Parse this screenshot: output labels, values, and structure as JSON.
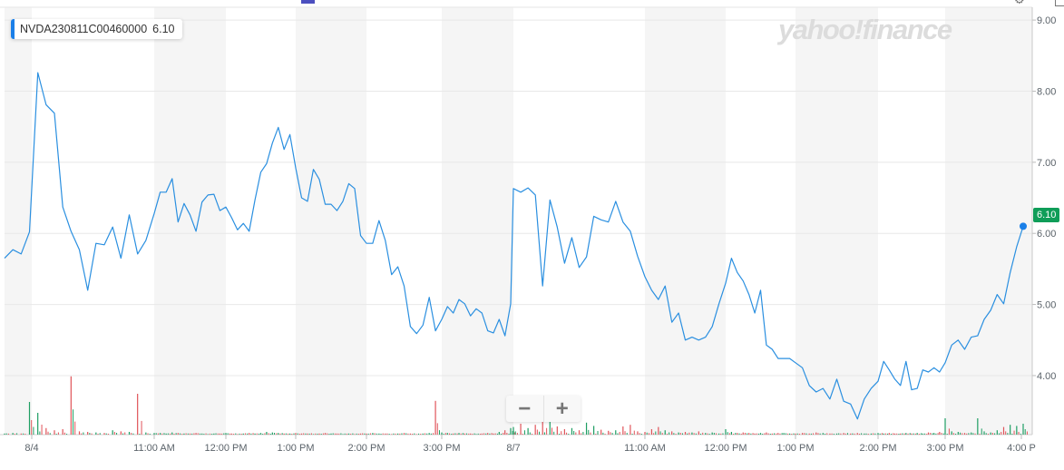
{
  "legend": {
    "symbol": "NVDA230811C00460000",
    "value": "6.10"
  },
  "watermark": "yahoo!finance",
  "zoom_controls": {
    "minus": "−",
    "plus": "+"
  },
  "icons": {
    "settings": "gear-icon",
    "fullscreen": "square-icon"
  },
  "colors": {
    "line": "#2a8fe0",
    "up_volume": "#1e9e63",
    "down_volume": "#e0545a",
    "last_price_tag": "#0f9d58",
    "band": "#f5f5f5"
  },
  "chart_data": {
    "type": "line",
    "title": "",
    "xlabel": "",
    "ylabel": "",
    "ylim": [
      3.17,
      9.18
    ],
    "grid": true,
    "y_ticks": [
      "9.00",
      "8.00",
      "7.00",
      "6.00",
      "5.00",
      "4.00"
    ],
    "x_ticks": [
      "8/4",
      "11:00 AM",
      "12:00 PM",
      "1:00 PM",
      "2:00 PM",
      "3:00 PM",
      "8/7",
      "11:00 AM",
      "12:00 PM",
      "1:00 PM",
      "2:00 PM",
      "3:00 PM",
      "4:00 P"
    ],
    "last_price": "6.10",
    "series": [
      {
        "day": "8/4",
        "start": "09:30",
        "interval_min": 5,
        "prices": [
          5.65,
          5.77,
          5.71,
          6.02,
          8.26,
          7.81,
          7.69,
          6.37,
          6.03,
          5.77,
          5.2,
          5.86,
          5.84,
          6.09,
          5.65,
          6.26,
          5.71,
          5.9,
          6.28,
          6.58,
          6.58,
          6.77,
          6.16,
          6.42,
          6.26,
          6.03,
          6.44,
          6.54,
          6.55,
          6.32,
          6.37,
          6.22,
          6.05,
          6.14,
          6.03,
          6.47,
          6.86,
          6.98,
          7.27,
          7.49,
          7.18,
          7.39,
          6.92,
          6.5,
          6.45,
          6.9,
          6.76,
          6.41,
          6.41,
          6.32,
          6.45,
          6.7,
          6.63,
          5.97,
          5.86,
          5.86,
          6.18,
          5.9,
          5.42,
          5.53,
          5.26,
          4.69,
          4.59,
          4.71,
          5.1,
          4.63,
          4.79,
          4.97,
          4.88,
          5.07,
          5.01,
          4.84,
          4.94,
          4.88,
          4.63,
          4.6,
          4.79,
          4.56,
          5.01
        ],
        "volume": [
          2,
          3,
          2,
          60,
          40,
          12,
          8,
          10,
          107,
          6,
          5,
          4,
          3,
          8,
          6,
          5,
          75,
          4,
          3,
          3,
          2,
          4,
          3,
          2,
          2,
          3,
          2,
          1,
          2,
          2,
          3,
          2,
          1,
          2,
          3,
          2,
          3,
          5,
          4,
          3,
          2,
          2,
          3,
          2,
          2,
          1,
          2,
          3,
          2,
          2,
          1,
          2,
          1,
          2,
          2,
          3,
          2,
          2,
          1,
          2,
          3,
          2,
          1,
          2,
          3,
          62,
          4,
          3,
          2,
          3,
          2,
          2,
          1,
          2,
          3,
          2,
          5,
          8,
          12
        ]
      },
      {
        "day": "8/7",
        "start": "09:30",
        "interval_min": 5,
        "prices": [
          6.63,
          6.58,
          6.64,
          6.54,
          5.26,
          6.47,
          6.09,
          5.58,
          5.94,
          5.52,
          5.67,
          6.24,
          6.19,
          6.16,
          6.45,
          6.16,
          6.03,
          5.68,
          5.39,
          5.2,
          5.07,
          5.26,
          4.75,
          4.88,
          4.5,
          4.54,
          4.5,
          4.54,
          4.69,
          5.01,
          5.3,
          5.65,
          5.45,
          5.33,
          5.14,
          4.88,
          5.2,
          4.43,
          4.37,
          4.24,
          4.24,
          4.24,
          4.18,
          4.11,
          3.86,
          3.77,
          3.82,
          3.67,
          3.95,
          3.64,
          3.6,
          3.39,
          3.67,
          3.82,
          3.92,
          4.2,
          4.08,
          3.95,
          3.86,
          4.2,
          3.8,
          3.82,
          4.08,
          4.05,
          4.11,
          4.05,
          4.18,
          4.43,
          4.5,
          4.37,
          4.54,
          4.56,
          4.79,
          4.92,
          5.14,
          5.01,
          5.45,
          5.81,
          6.1
        ],
        "volume": [
          14,
          20,
          12,
          18,
          25,
          35,
          15,
          10,
          12,
          8,
          22,
          16,
          9,
          7,
          8,
          15,
          18,
          6,
          5,
          10,
          14,
          8,
          6,
          4,
          5,
          4,
          6,
          3,
          4,
          2,
          10,
          5,
          3,
          4,
          3,
          2,
          3,
          4,
          2,
          3,
          3,
          2,
          2,
          3,
          2,
          4,
          3,
          2,
          2,
          3,
          2,
          3,
          2,
          2,
          3,
          2,
          3,
          2,
          2,
          3,
          2,
          3,
          2,
          4,
          3,
          5,
          30,
          6,
          5,
          3,
          4,
          30,
          6,
          4,
          8,
          14,
          18,
          16,
          20
        ]
      }
    ]
  }
}
